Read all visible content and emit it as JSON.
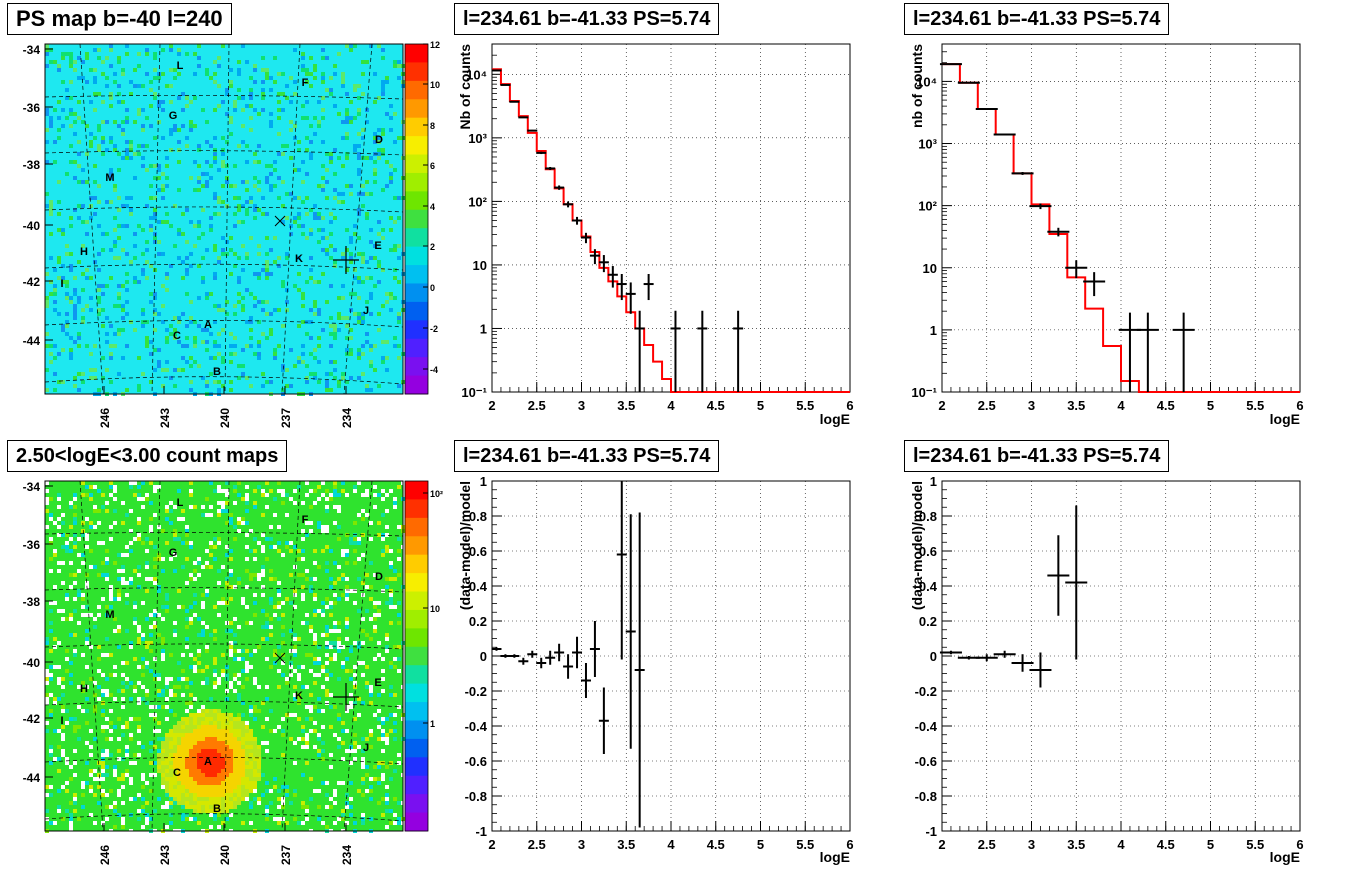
{
  "titles": {
    "ps_map": "PS map b=-40 l=240",
    "count_map": "2.50<logE<3.00 count maps",
    "spec_left": "l=234.61 b=-41.33 PS=5.74",
    "spec_right": "l=234.61 b=-41.33 PS=5.74",
    "resid_left": "l=234.61 b=-41.33 PS=5.74",
    "resid_right": "l=234.61 b=-41.33 PS=5.74"
  },
  "colors": {
    "model_line": "#ff0000",
    "data_points": "#000000",
    "frame": "#000000"
  },
  "maps": {
    "y_ticks": [
      "-34",
      "-36",
      "-38",
      "-40",
      "-42",
      "-44"
    ],
    "x_ticks": [
      "246",
      "243",
      "240",
      "237",
      "234"
    ],
    "source_labels": [
      "L",
      "F",
      "G",
      "D",
      "M",
      "E",
      "H",
      "K",
      "I",
      "J",
      "A",
      "C",
      "B"
    ],
    "ps_colorbar_ticks": [
      "12",
      "10",
      "8",
      "6",
      "4",
      "2",
      "0",
      "-2",
      "-4"
    ],
    "count_colorbar_ticks": [
      "10²",
      "10",
      "1"
    ]
  },
  "chart_data": [
    {
      "id": "spec_left",
      "type": "line",
      "title": "l=234.61 b=-41.33 PS=5.74",
      "xlabel": "logE",
      "ylabel": "Nb of counts",
      "xlim": [
        2,
        6
      ],
      "ylim": [
        0.1,
        30000
      ],
      "log_y": true,
      "grid": true,
      "x_ticks": [
        "2",
        "2.5",
        "3",
        "3.5",
        "4",
        "4.5",
        "5",
        "5.5",
        "6"
      ],
      "y_ticks": [
        "10⁴",
        "10³",
        "10²",
        "10",
        "1",
        "10⁻¹"
      ],
      "series": [
        {
          "kind": "model-step",
          "edges": [
            2.0,
            2.1,
            2.2,
            2.3,
            2.4,
            2.5,
            2.6,
            2.7,
            2.8,
            2.9,
            3.0,
            3.1,
            3.2,
            3.3,
            3.4,
            3.5,
            3.6,
            3.7,
            3.8,
            3.9,
            4.0,
            4.1,
            6.0
          ],
          "values": [
            12000,
            7000,
            3800,
            2200,
            1200,
            620,
            320,
            160,
            90,
            50,
            28,
            16,
            9,
            5.5,
            3.2,
            1.8,
            1.0,
            0.55,
            0.3,
            0.16,
            0.1,
            0.05
          ]
        },
        {
          "kind": "data-errorbars",
          "x": [
            2.05,
            2.15,
            2.25,
            2.35,
            2.45,
            2.55,
            2.65,
            2.75,
            2.85,
            2.95,
            3.05,
            3.15,
            3.25,
            3.35,
            3.45,
            3.55,
            3.65,
            3.75,
            4.05,
            4.35,
            4.75
          ],
          "y": [
            11500,
            6800,
            3700,
            2100,
            1300,
            580,
            330,
            165,
            90,
            50,
            27,
            14,
            11,
            7,
            5,
            3.5,
            1,
            5,
            1,
            1,
            1
          ],
          "yerr": [
            110,
            80,
            60,
            45,
            35,
            24,
            18,
            13,
            9.5,
            7,
            5,
            3.7,
            3.3,
            2.6,
            2.2,
            1.8,
            0.9,
            2.2,
            0.9,
            0.9,
            0.9
          ]
        }
      ]
    },
    {
      "id": "spec_right",
      "type": "line",
      "title": "l=234.61 b=-41.33 PS=5.74",
      "xlabel": "logE",
      "ylabel": "nb of counts",
      "xlim": [
        2,
        6
      ],
      "ylim": [
        0.1,
        40000
      ],
      "log_y": true,
      "grid": true,
      "x_ticks": [
        "2",
        "2.5",
        "3",
        "3.5",
        "4",
        "4.5",
        "5",
        "5.5",
        "6"
      ],
      "y_ticks": [
        "10⁴",
        "10³",
        "10²",
        "10",
        "1",
        "10⁻¹"
      ],
      "series": [
        {
          "kind": "model-step",
          "edges": [
            2.0,
            2.2,
            2.4,
            2.6,
            2.8,
            3.0,
            3.2,
            3.4,
            3.6,
            3.8,
            4.0,
            4.2,
            6.0
          ],
          "values": [
            19000,
            9500,
            3600,
            1400,
            330,
            105,
            35,
            7,
            2.2,
            0.55,
            0.15,
            0.1
          ]
        },
        {
          "kind": "data-errorbars",
          "x": [
            2.1,
            2.3,
            2.5,
            2.7,
            2.9,
            3.1,
            3.3,
            3.5,
            3.7,
            4.1,
            4.3,
            4.7
          ],
          "y": [
            19000,
            9500,
            3600,
            1400,
            330,
            98,
            38,
            10,
            6,
            1,
            1,
            1
          ],
          "yerr": [
            140,
            100,
            60,
            37,
            18,
            10,
            6,
            3.2,
            2.5,
            0.9,
            0.9,
            0.9
          ]
        }
      ]
    },
    {
      "id": "resid_left",
      "type": "scatter",
      "title": "l=234.61 b=-41.33 PS=5.74",
      "xlabel": "logE",
      "ylabel": "(data-model)/model",
      "xlim": [
        2,
        6
      ],
      "ylim": [
        -1,
        1
      ],
      "grid": true,
      "x_ticks": [
        "2",
        "2.5",
        "3",
        "3.5",
        "4",
        "4.5",
        "5",
        "5.5",
        "6"
      ],
      "y_ticks": [
        "1",
        "0.8",
        "0.6",
        "0.4",
        "0.2",
        "0",
        "-0.2",
        "-0.4",
        "-0.6",
        "-0.8",
        "-1"
      ],
      "series": [
        {
          "kind": "data-errorbars",
          "x": [
            2.05,
            2.15,
            2.25,
            2.35,
            2.45,
            2.55,
            2.65,
            2.75,
            2.85,
            2.95,
            3.05,
            3.15,
            3.25,
            3.45,
            3.55,
            3.65
          ],
          "y": [
            0.04,
            0.0,
            0.0,
            -0.03,
            0.01,
            -0.04,
            -0.01,
            0.02,
            -0.06,
            0.02,
            -0.14,
            0.04,
            -0.37,
            0.58,
            0.14,
            -0.08
          ],
          "yerr": [
            0.01,
            0.01,
            0.01,
            0.02,
            0.02,
            0.03,
            0.04,
            0.05,
            0.07,
            0.09,
            0.1,
            0.16,
            0.19,
            0.6,
            0.67,
            0.9
          ]
        }
      ]
    },
    {
      "id": "resid_right",
      "type": "scatter",
      "title": "l=234.61 b=-41.33 PS=5.74",
      "xlabel": "logE",
      "ylabel": "(data-model)/model",
      "xlim": [
        2,
        6
      ],
      "ylim": [
        -1,
        1
      ],
      "grid": true,
      "x_ticks": [
        "2",
        "2.5",
        "3",
        "3.5",
        "4",
        "4.5",
        "5",
        "5.5",
        "6"
      ],
      "y_ticks": [
        "1",
        "0.8",
        "0.6",
        "0.4",
        "0.2",
        "0",
        "-0.2",
        "-0.4",
        "-0.6",
        "-0.8",
        "-1"
      ],
      "series": [
        {
          "kind": "data-errorbars",
          "x": [
            2.1,
            2.3,
            2.5,
            2.7,
            2.9,
            3.1,
            3.3,
            3.5
          ],
          "y": [
            0.02,
            -0.01,
            -0.01,
            0.01,
            -0.04,
            -0.08,
            0.46,
            0.42
          ],
          "yerr": [
            0.01,
            0.01,
            0.02,
            0.02,
            0.05,
            0.1,
            0.23,
            0.44
          ]
        }
      ]
    }
  ]
}
